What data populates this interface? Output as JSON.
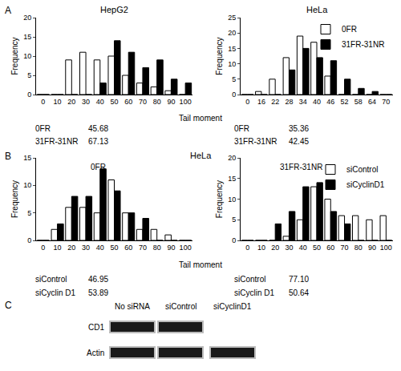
{
  "figure": {
    "panel_labels": [
      "A",
      "B",
      "C"
    ],
    "B_title": "HeLa"
  },
  "chart_data": [
    {
      "type": "bar",
      "title": "HepG2",
      "x_label": "Tail moment",
      "y_label": "Frequency",
      "categories": [
        0,
        10,
        20,
        30,
        40,
        50,
        60,
        70,
        80,
        90,
        100
      ],
      "series": [
        {
          "name": "0FR",
          "color": "#ffffff",
          "values": [
            0,
            0,
            9,
            11,
            9,
            10,
            5,
            3,
            2,
            1,
            0
          ]
        },
        {
          "name": "31FR-31NR",
          "color": "#000000",
          "values": [
            0,
            0,
            0,
            0,
            3,
            14,
            11,
            7,
            9,
            4,
            3
          ]
        }
      ],
      "ylim": [
        0,
        20
      ],
      "yticks": [
        0,
        5,
        10,
        15,
        20
      ],
      "summary": [
        {
          "name": "0FR",
          "text": "45.68"
        },
        {
          "name": "31FR-31NR",
          "text": "67.13"
        }
      ]
    },
    {
      "type": "bar",
      "title": "HeLa",
      "y_label": "Frequency",
      "categories": [
        0,
        16,
        22,
        28,
        34,
        40,
        46,
        52,
        58,
        64,
        70
      ],
      "series": [
        {
          "name": "0FR",
          "color": "#ffffff",
          "values": [
            0,
            1,
            5,
            12,
            19,
            17,
            6,
            0,
            0,
            0,
            0
          ]
        },
        {
          "name": "31FR-31NR",
          "color": "#000000",
          "values": [
            0,
            0,
            0,
            8,
            15,
            12,
            11,
            5,
            2,
            1,
            0
          ]
        }
      ],
      "ylim": [
        0,
        25
      ],
      "yticks": [
        0,
        5,
        10,
        15,
        20,
        25
      ],
      "legend": "upper right",
      "summary": [
        {
          "name": "0FR",
          "text": "35.36"
        },
        {
          "name": "31FR-31NR",
          "text": "42.45"
        }
      ]
    },
    {
      "type": "bar",
      "title": "0FR",
      "x_label": "Tail moment",
      "y_label": "Frequency",
      "categories": [
        0,
        10,
        20,
        30,
        40,
        50,
        60,
        70,
        80,
        90,
        100
      ],
      "series": [
        {
          "name": "siControl",
          "color": "#ffffff",
          "values": [
            0,
            2,
            6,
            6,
            5,
            11,
            5,
            2,
            2,
            1,
            0
          ]
        },
        {
          "name": "siCyclinD1",
          "color": "#000000",
          "values": [
            0,
            3,
            8,
            8,
            13,
            9,
            5,
            4,
            0,
            0,
            0
          ]
        }
      ],
      "ylim": [
        0,
        15
      ],
      "yticks": [
        0,
        5,
        10,
        15
      ],
      "summary": [
        {
          "name": "siControl",
          "text": "46.95"
        },
        {
          "name": "siCyclin D1",
          "text": "53.89"
        }
      ]
    },
    {
      "type": "bar",
      "title": "31FR-31NR",
      "y_label": "Frequency",
      "categories": [
        0,
        10,
        20,
        30,
        40,
        50,
        60,
        70,
        80,
        90,
        100
      ],
      "series": [
        {
          "name": "siControl",
          "color": "#ffffff",
          "values": [
            0,
            0,
            0,
            1,
            5,
            13,
            10,
            6,
            6,
            5,
            6
          ]
        },
        {
          "name": "siCyclinD1",
          "color": "#000000",
          "values": [
            0,
            0,
            4,
            7,
            13,
            14,
            7,
            4,
            0,
            0,
            0
          ]
        }
      ],
      "ylim": [
        0,
        20
      ],
      "yticks": [
        0,
        5,
        10,
        15,
        20
      ],
      "legend": "upper right",
      "summary": [
        {
          "name": "siControl",
          "text": "77.10"
        },
        {
          "name": "siCyclin D1",
          "text": "50.64"
        }
      ]
    }
  ],
  "blot": {
    "lanes": [
      "No siRNA",
      "siControl",
      "siCyclinD1"
    ],
    "rows": [
      {
        "label": "CD1",
        "present": [
          true,
          true,
          false
        ]
      },
      {
        "label": "Actin",
        "present": [
          true,
          true,
          true
        ]
      }
    ]
  }
}
